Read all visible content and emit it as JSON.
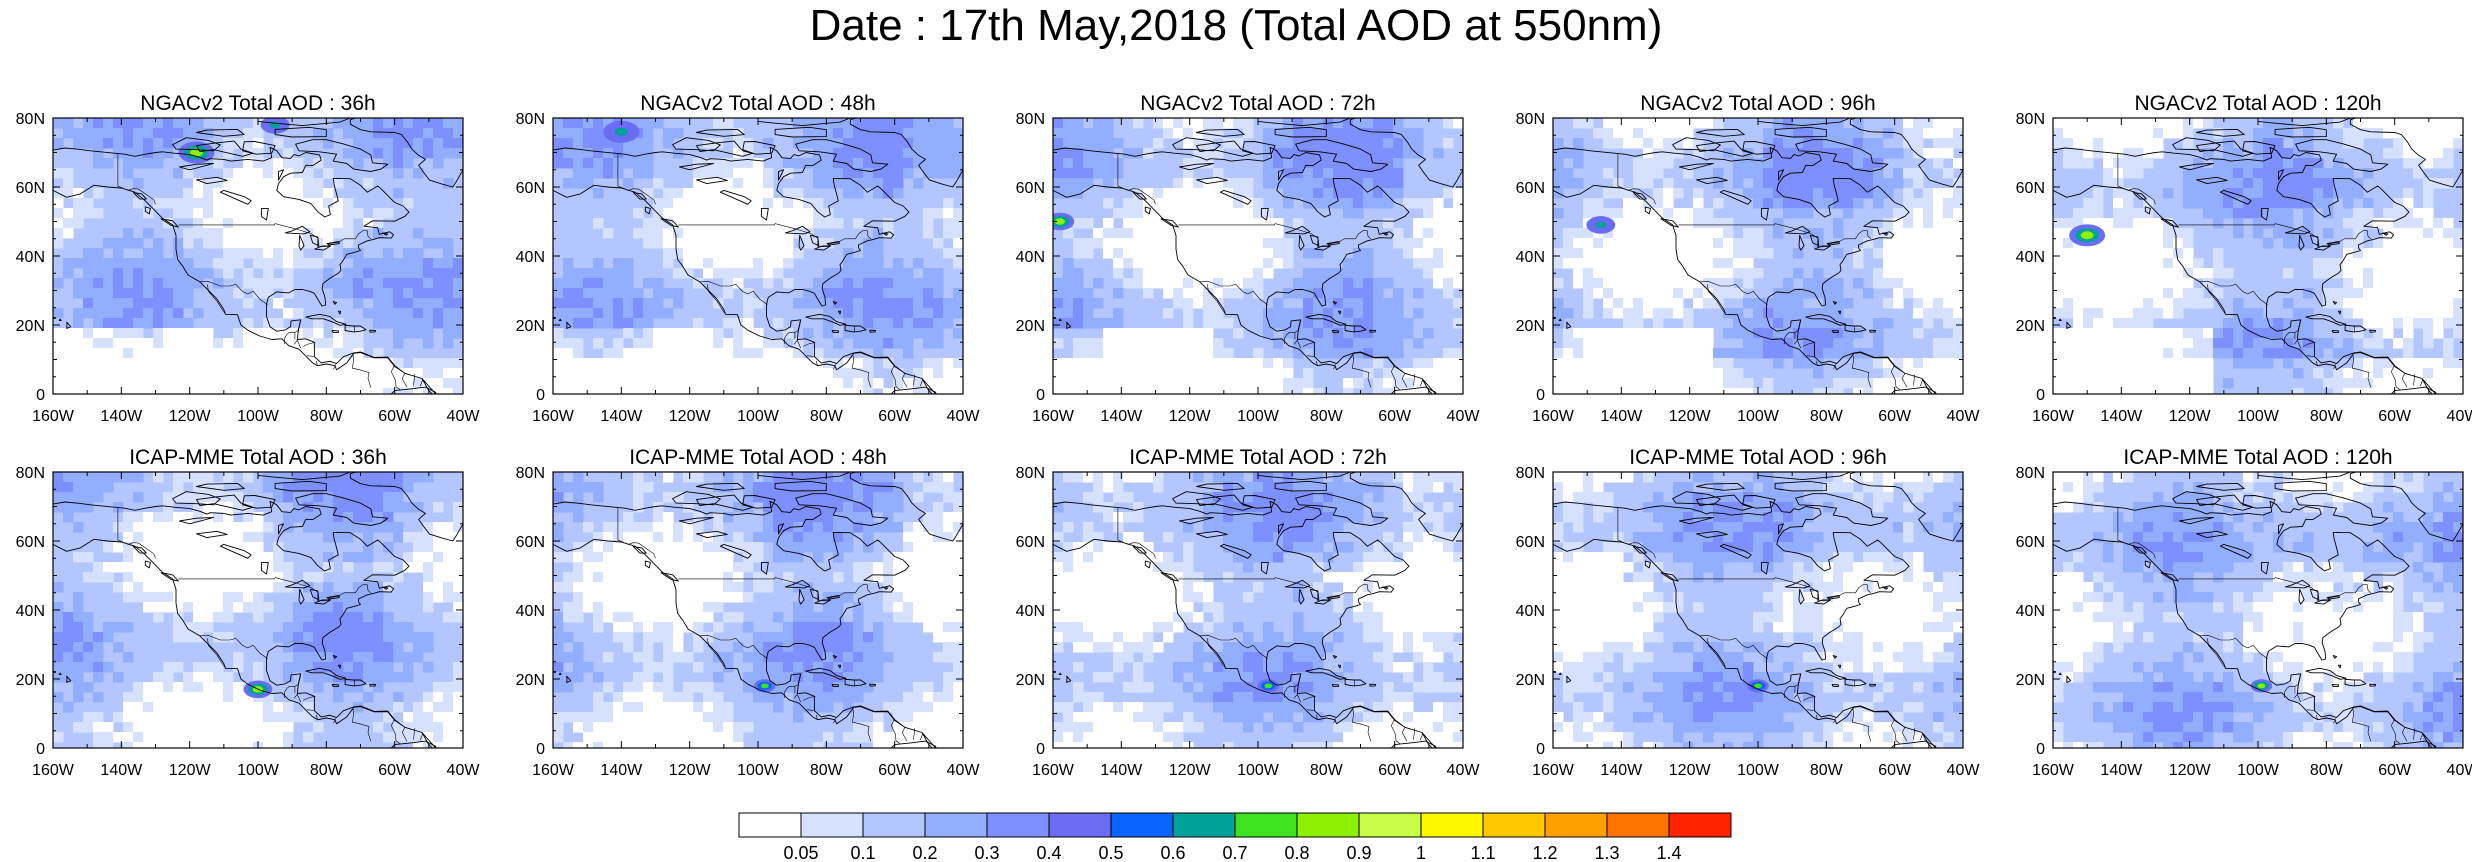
{
  "title": "Date : 17th May,2018 (Total AOD at 550nm)",
  "rows": [
    {
      "model": "NGACv2",
      "panels": [
        {
          "title": "NGACv2 Total AOD : 36h",
          "hotspots": [
            {
              "name": "pacific-plume",
              "lon": -118,
              "lat": 70,
              "level": 0.8,
              "r": 5
            },
            {
              "name": "arctic-plume",
              "lon": -95,
              "lat": 78,
              "level": 0.6,
              "r": 4
            }
          ]
        },
        {
          "title": "NGACv2 Total AOD : 48h",
          "hotspots": [
            {
              "name": "arctic-plume",
              "lon": -140,
              "lat": 76,
              "level": 0.6,
              "r": 5
            }
          ]
        },
        {
          "title": "NGACv2 Total AOD : 72h",
          "hotspots": [
            {
              "name": "pacific-plume",
              "lon": -158,
              "lat": 50,
              "level": 0.8,
              "r": 4
            }
          ]
        },
        {
          "title": "NGACv2 Total AOD : 96h",
          "hotspots": [
            {
              "name": "pacific-plume",
              "lon": -146,
              "lat": 49,
              "level": 0.6,
              "r": 4
            }
          ]
        },
        {
          "title": "NGACv2 Total AOD : 120h",
          "hotspots": [
            {
              "name": "pacific-plume",
              "lon": -150,
              "lat": 46,
              "level": 0.8,
              "r": 5
            }
          ]
        }
      ]
    },
    {
      "model": "ICAP-MME",
      "panels": [
        {
          "title": "ICAP-MME Total AOD : 36h",
          "hotspots": [
            {
              "name": "mexico-plume",
              "lon": -100,
              "lat": 17,
              "level": 0.8,
              "r": 4
            }
          ]
        },
        {
          "title": "ICAP-MME Total AOD : 48h",
          "hotspots": [
            {
              "name": "mexico-plume",
              "lon": -98,
              "lat": 18,
              "level": 0.7,
              "r": 3
            }
          ]
        },
        {
          "title": "ICAP-MME Total AOD : 72h",
          "hotspots": [
            {
              "name": "mexico-plume",
              "lon": -97,
              "lat": 18,
              "level": 0.7,
              "r": 3
            }
          ]
        },
        {
          "title": "ICAP-MME Total AOD : 96h",
          "hotspots": [
            {
              "name": "mexico-plume",
              "lon": -100,
              "lat": 18,
              "level": 0.7,
              "r": 3
            }
          ]
        },
        {
          "title": "ICAP-MME Total AOD : 120h",
          "hotspots": [
            {
              "name": "mexico-plume",
              "lon": -99,
              "lat": 18,
              "level": 0.8,
              "r": 3
            }
          ]
        }
      ]
    }
  ],
  "axes": {
    "lon_ticks": [
      "160W",
      "140W",
      "120W",
      "100W",
      "80W",
      "60W",
      "40W"
    ],
    "lat_ticks": [
      "0",
      "20N",
      "40N",
      "60N",
      "80N"
    ]
  },
  "colorbar": {
    "colors": [
      "#ffffff",
      "#d6e0ff",
      "#b4c6ff",
      "#94aeff",
      "#7e90ff",
      "#6a6cf4",
      "#0a64ff",
      "#00a09b",
      "#3ee21e",
      "#8cf000",
      "#c8fc46",
      "#fff700",
      "#ffc800",
      "#ffa000",
      "#ff7300",
      "#ff2300"
    ],
    "labels": [
      "0.05",
      "0.1",
      "0.2",
      "0.3",
      "0.4",
      "0.5",
      "0.6",
      "0.7",
      "0.8",
      "0.9",
      "1",
      "1.1",
      "1.2",
      "1.3",
      "1.4"
    ]
  }
}
